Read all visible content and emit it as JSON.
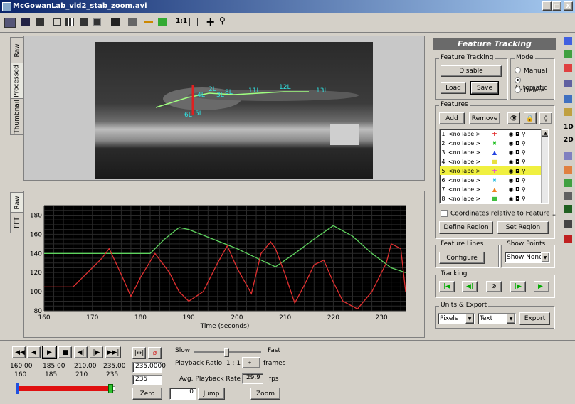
{
  "window": {
    "title": "McGowanLab_vid2_stab_zoom.avi",
    "controls": [
      "_",
      "□",
      "X"
    ]
  },
  "toolbar": {
    "ratio_label": "1:1",
    "icons": [
      "open-icon",
      "save-icon",
      "view1-icon",
      "view2-icon",
      "view3-icon",
      "view4-icon",
      "frame-icon",
      "settings-icon",
      "line-icon",
      "box-icon",
      "add-icon",
      "zoom-icon"
    ]
  },
  "video_tabs": [
    "Raw",
    "Processed",
    "Thumbnail"
  ],
  "chart_tabs": [
    "Raw",
    "FFT"
  ],
  "overlay_labels": [
    {
      "text": "2L",
      "color": "#30e0e0"
    },
    {
      "text": "4L",
      "color": "#30e0e0"
    },
    {
      "text": "3L",
      "color": "#30e0e0"
    },
    {
      "text": "8L",
      "color": "#30e0e0"
    },
    {
      "text": "11L",
      "color": "#30e0e0"
    },
    {
      "text": "12L",
      "color": "#30e0e0"
    },
    {
      "text": "13L",
      "color": "#30e0e0"
    },
    {
      "text": "6L",
      "color": "#30e0e0"
    },
    {
      "text": "5L",
      "color": "#30e0e0"
    }
  ],
  "chart_data": {
    "type": "line",
    "xlabel": "Time (seconds)",
    "ylabel": "",
    "xlim": [
      160,
      235
    ],
    "ylim": [
      80,
      190
    ],
    "xticks": [
      160,
      170,
      180,
      190,
      200,
      210,
      220,
      230
    ],
    "yticks": [
      80,
      100,
      120,
      140,
      160,
      180
    ],
    "series": [
      {
        "color": "#5fd35f",
        "x": [
          160,
          170,
          180,
          182,
          185,
          188,
          190,
          195,
          200,
          205,
          208,
          212,
          216,
          220,
          224,
          228,
          232,
          235
        ],
        "y": [
          140,
          140,
          140,
          140,
          155,
          167,
          165,
          155,
          145,
          133,
          126,
          140,
          155,
          169,
          158,
          140,
          125,
          120
        ]
      },
      {
        "color": "#e03030",
        "x": [
          160,
          166,
          172,
          173.5,
          176,
          178,
          180,
          183,
          186,
          188,
          190,
          193,
          196,
          198,
          200,
          203,
          205,
          207,
          208,
          210,
          212,
          214,
          216,
          218,
          220,
          222,
          225,
          228,
          231,
          232,
          234,
          235
        ],
        "y": [
          105,
          105,
          135,
          145,
          118,
          95,
          115,
          140,
          120,
          100,
          90,
          100,
          130,
          148,
          125,
          98,
          140,
          152,
          145,
          118,
          88,
          107,
          128,
          133,
          110,
          90,
          82,
          100,
          130,
          150,
          145,
          100
        ]
      }
    ]
  },
  "panel": {
    "header": "Feature Tracking",
    "feature_tracking": {
      "label": "Feature Tracking",
      "disable": "Disable",
      "load": "Load",
      "save": "Save"
    },
    "mode": {
      "label": "Mode",
      "options": [
        "Manual",
        "Automatic",
        "Delete"
      ],
      "selected": "Automatic"
    },
    "features": {
      "label": "Features",
      "add": "Add",
      "remove": "Remove",
      "rows": [
        {
          "n": "1",
          "name": "<no label>",
          "marker": "✚",
          "color": "#e02020"
        },
        {
          "n": "2",
          "name": "<no label>",
          "marker": "✖",
          "color": "#20c020"
        },
        {
          "n": "3",
          "name": "<no label>",
          "marker": "▲",
          "color": "#2040e0"
        },
        {
          "n": "4",
          "name": "<no label>",
          "marker": "■",
          "color": "#e8e040"
        },
        {
          "n": "5",
          "name": "<no label>",
          "marker": "✚",
          "color": "#e040e0"
        },
        {
          "n": "6",
          "name": "<no label>",
          "marker": "✖",
          "color": "#30c0e0"
        },
        {
          "n": "7",
          "name": "<no label>",
          "marker": "▲",
          "color": "#f08020"
        },
        {
          "n": "8",
          "name": "<no label>",
          "marker": "■",
          "color": "#40c040"
        }
      ],
      "selected_row": 4,
      "relative_checkbox": "Coordinates relative to Feature 1",
      "define_region": "Define Region",
      "set_region": "Set Region"
    },
    "feature_lines": {
      "label": "Feature Lines",
      "configure": "Configure"
    },
    "show_points": {
      "label": "Show Points",
      "value": "Show None"
    },
    "tracking": {
      "label": "Tracking"
    },
    "units_export": {
      "label": "Units & Export",
      "units": "Pixels",
      "format": "Text",
      "export": "Export"
    }
  },
  "playback": {
    "time_start": "160.00",
    "time_1": "185.00",
    "time_2": "210.00",
    "time_3": "235.00",
    "tick_labels": [
      "160",
      "185",
      "210",
      "235"
    ],
    "progress": 0.96,
    "current_time": "235.0000",
    "current_frame": "235",
    "zero": "Zero",
    "slow": "Slow",
    "fast": "Fast",
    "ratio_label": "Playback Ratio  1 : 1",
    "frames": "frames",
    "avg_label": "Avg. Playback Rate",
    "avg_value": "29.9",
    "fps": "fps",
    "jump_value": "0",
    "jump": "Jump",
    "zoom": "Zoom"
  }
}
